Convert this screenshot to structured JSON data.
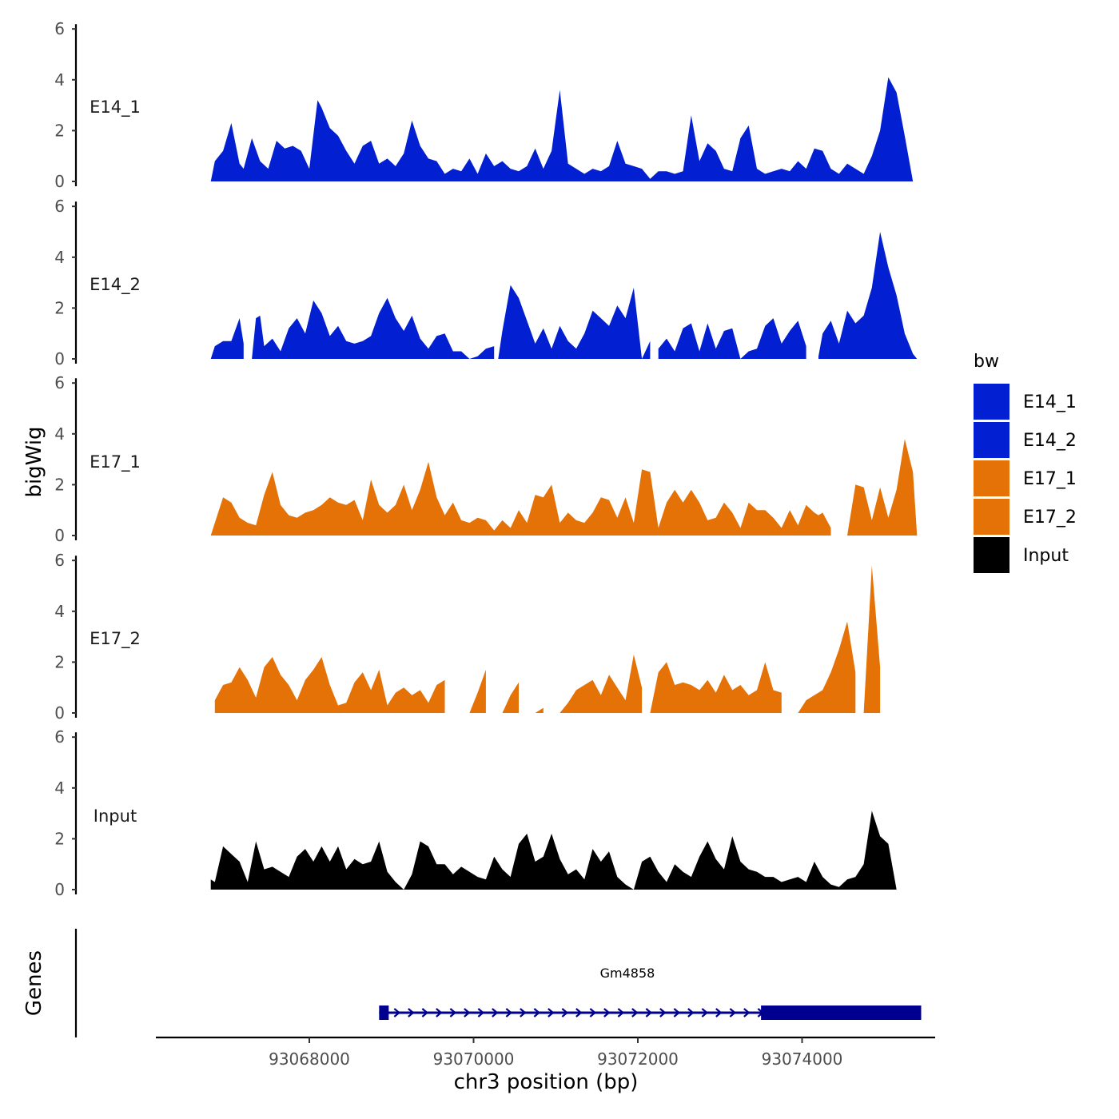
{
  "chart_data": {
    "type": "area",
    "title": "",
    "ylabel": "bigWig",
    "xlabel": "chr3 position (bp)",
    "xlim": [
      93066400,
      93075950
    ],
    "ylim": [
      0,
      6
    ],
    "y_ticks": [
      0,
      2,
      4,
      6
    ],
    "x_ticks": [
      93068000,
      93070000,
      93072000,
      93074000
    ],
    "x_tick_labels": [
      "93068000",
      "93070000",
      "93072000",
      "93074000"
    ],
    "genes_label": "Genes",
    "legend": {
      "title": "bw",
      "entries": [
        {
          "name": "E14_1",
          "color": "#0220D1"
        },
        {
          "name": "E14_2",
          "color": "#0220D1"
        },
        {
          "name": "E17_1",
          "color": "#E57206"
        },
        {
          "name": "E17_2",
          "color": "#E57206"
        },
        {
          "name": "Input",
          "color": "#000000"
        }
      ]
    },
    "series": [
      {
        "name": "E14_1",
        "color": "#0220D1",
        "x": [
          93066800,
          93066850,
          93066950,
          93067050,
          93067150,
          93067200,
          93067300,
          93067400,
          93067500,
          93067600,
          93067700,
          93067800,
          93067900,
          93068000,
          93068100,
          93068150,
          93068250,
          93068350,
          93068450,
          93068550,
          93068650,
          93068750,
          93068850,
          93068950,
          93069050,
          93069150,
          93069250,
          93069350,
          93069450,
          93069550,
          93069650,
          93069750,
          93069850,
          93069950,
          93070050,
          93070150,
          93070250,
          93070350,
          93070450,
          93070550,
          93070650,
          93070750,
          93070850,
          93070950,
          93071050,
          93071150,
          93071250,
          93071350,
          93071450,
          93071550,
          93071650,
          93071750,
          93071850,
          93071950,
          93072050,
          93072150,
          93072250,
          93072350,
          93072450,
          93072550,
          93072650,
          93072750,
          93072850,
          93072950,
          93073050,
          93073150,
          93073250,
          93073350,
          93073450,
          93073550,
          93073650,
          93073750,
          93073850,
          93073950,
          93074050,
          93074150,
          93074250,
          93074350,
          93074450,
          93074550,
          93074650,
          93074750,
          93074850,
          93074950,
          93075050,
          93075150,
          93075250,
          93075350,
          93075400,
          93075450
        ],
        "y": [
          0,
          0.8,
          1.2,
          2.3,
          0.7,
          0.5,
          1.7,
          0.8,
          0.5,
          1.6,
          1.3,
          1.4,
          1.2,
          0.5,
          3.2,
          2.9,
          2.1,
          1.8,
          1.2,
          0.7,
          1.4,
          1.6,
          0.7,
          0.9,
          0.6,
          1.1,
          2.4,
          1.4,
          0.9,
          0.8,
          0.3,
          0.5,
          0.4,
          0.9,
          0.3,
          1.1,
          0.6,
          0.8,
          0.5,
          0.4,
          0.6,
          1.3,
          0.5,
          1.2,
          3.6,
          0.7,
          0.5,
          0.3,
          0.5,
          0.4,
          0.6,
          1.6,
          0.7,
          0.6,
          0.5,
          0.1,
          0.4,
          0.4,
          0.3,
          0.4,
          2.6,
          0.8,
          1.5,
          1.2,
          0.5,
          0.4,
          1.7,
          2.2,
          0.5,
          0.3,
          0.4,
          0.5,
          0.4,
          0.8,
          0.5,
          1.3,
          1.2,
          0.5,
          0.3,
          0.7,
          0.5,
          0.3,
          1.0,
          2.0,
          4.1,
          3.5,
          1.8,
          0,
          0,
          0
        ]
      },
      {
        "name": "E14_2",
        "color": "#0220D1",
        "x": [
          93066800,
          93066850,
          93066950,
          93067050,
          93067150,
          93067200,
          93067300,
          93067350,
          93067400,
          93067450,
          93067550,
          93067650,
          93067750,
          93067850,
          93067950,
          93068050,
          93068150,
          93068250,
          93068350,
          93068450,
          93068550,
          93068650,
          93068750,
          93068850,
          93068950,
          93069050,
          93069150,
          93069250,
          93069350,
          93069450,
          93069550,
          93069650,
          93069750,
          93069850,
          93069950,
          93070050,
          93070150,
          93070250,
          93070300,
          93070350,
          93070450,
          93070550,
          93070650,
          93070750,
          93070850,
          93070950,
          93071050,
          93071150,
          93071250,
          93071350,
          93071450,
          93071550,
          93071650,
          93071750,
          93071850,
          93071950,
          93072050,
          93072150,
          93072250,
          93072350,
          93072450,
          93072550,
          93072650,
          93072750,
          93072850,
          93072950,
          93073050,
          93073150,
          93073250,
          93073350,
          93073450,
          93073550,
          93073650,
          93073750,
          93073850,
          93073950,
          93074050,
          93074150,
          93074200,
          93074250,
          93074350,
          93074450,
          93074550,
          93074650,
          93074750,
          93074850,
          93074950,
          93075050,
          93075150,
          93075250,
          93075350,
          93075400,
          93075450
        ],
        "y": [
          0,
          0.5,
          0.7,
          0.7,
          1.6,
          0.6,
          0,
          1.6,
          1.7,
          0.5,
          0.8,
          0.3,
          1.2,
          1.6,
          1.0,
          2.3,
          1.8,
          0.9,
          1.3,
          0.7,
          0.6,
          0.7,
          0.9,
          1.8,
          2.4,
          1.6,
          1.1,
          1.7,
          0.8,
          0.4,
          0.9,
          1.0,
          0.3,
          0.3,
          0,
          0.1,
          0.4,
          0.5,
          0,
          1.1,
          2.9,
          2.4,
          1.5,
          0.6,
          1.2,
          0.4,
          1.3,
          0.7,
          0.4,
          1.0,
          1.9,
          1.6,
          1.3,
          2.1,
          1.6,
          2.8,
          0,
          0.7,
          0.4,
          0.8,
          0.3,
          1.2,
          1.4,
          0.3,
          1.4,
          0.4,
          1.1,
          1.2,
          0,
          0.3,
          0.4,
          1.3,
          1.6,
          0.6,
          1.1,
          1.5,
          0.5,
          0.2,
          0.1,
          1.0,
          1.5,
          0.6,
          1.9,
          1.4,
          1.7,
          2.8,
          5.0,
          3.6,
          2.5,
          1.0,
          0.2,
          0,
          0
        ],
        "gaps_after_index": [
          5,
          37,
          57,
          76,
          77
        ]
      },
      {
        "name": "E17_1",
        "color": "#E57206",
        "x": [
          93066800,
          93066850,
          93066950,
          93067050,
          93067150,
          93067250,
          93067350,
          93067450,
          93067550,
          93067650,
          93067750,
          93067850,
          93067950,
          93068050,
          93068150,
          93068250,
          93068350,
          93068450,
          93068550,
          93068650,
          93068750,
          93068850,
          93068950,
          93069050,
          93069150,
          93069250,
          93069350,
          93069450,
          93069550,
          93069650,
          93069750,
          93069850,
          93069950,
          93070050,
          93070150,
          93070250,
          93070350,
          93070450,
          93070550,
          93070650,
          93070750,
          93070850,
          93070950,
          93071050,
          93071150,
          93071250,
          93071350,
          93071450,
          93071550,
          93071650,
          93071750,
          93071850,
          93071950,
          93072050,
          93072150,
          93072250,
          93072350,
          93072450,
          93072550,
          93072650,
          93072750,
          93072850,
          93072950,
          93073050,
          93073150,
          93073250,
          93073350,
          93073450,
          93073550,
          93073650,
          93073750,
          93073850,
          93073950,
          93074050,
          93074150,
          93074200,
          93074250,
          93074350,
          93074450,
          93074550,
          93074650,
          93074750,
          93074850,
          93074950,
          93075050,
          93075150,
          93075250,
          93075350,
          93075400,
          93075450
        ],
        "y": [
          0,
          0.5,
          1.5,
          1.3,
          0.7,
          0.5,
          0.4,
          1.6,
          2.5,
          1.2,
          0.8,
          0.7,
          0.9,
          1.0,
          1.2,
          1.5,
          1.3,
          1.2,
          1.4,
          0.6,
          2.2,
          1.2,
          0.9,
          1.2,
          2.0,
          1.0,
          1.8,
          2.9,
          1.5,
          0.8,
          1.3,
          0.6,
          0.5,
          0.7,
          0.6,
          0.2,
          0.6,
          0.3,
          1.0,
          0.5,
          1.6,
          1.5,
          2.0,
          0.5,
          0.9,
          0.6,
          0.5,
          0.9,
          1.5,
          1.4,
          0.7,
          1.5,
          0.5,
          2.6,
          2.5,
          0.3,
          1.3,
          1.8,
          1.3,
          1.8,
          1.3,
          0.6,
          0.7,
          1.3,
          0.9,
          0.3,
          1.3,
          1.0,
          1.0,
          0.7,
          0.3,
          1.0,
          0.4,
          1.2,
          0.9,
          0.8,
          0.9,
          0.3,
          0,
          0,
          2.0,
          1.9,
          0.6,
          1.9,
          0.7,
          1.8,
          3.8,
          2.5,
          0,
          0
        ],
        "gaps_after_index": [
          77,
          78
        ]
      },
      {
        "name": "E17_2",
        "color": "#E57206",
        "x": [
          93066850,
          93066950,
          93067050,
          93067150,
          93067250,
          93067350,
          93067450,
          93067550,
          93067650,
          93067750,
          93067850,
          93067950,
          93068050,
          93068150,
          93068250,
          93068350,
          93068450,
          93068550,
          93068650,
          93068750,
          93068850,
          93068950,
          93069050,
          93069150,
          93069250,
          93069350,
          93069450,
          93069550,
          93069650,
          93069750,
          93069850,
          93069950,
          93070050,
          93070150,
          93070250,
          93070350,
          93070450,
          93070550,
          93070650,
          93070750,
          93070850,
          93070950,
          93071050,
          93071150,
          93071250,
          93071350,
          93071450,
          93071550,
          93071650,
          93071750,
          93071850,
          93071950,
          93072050,
          93072150,
          93072250,
          93072350,
          93072450,
          93072550,
          93072650,
          93072750,
          93072850,
          93072950,
          93073050,
          93073150,
          93073250,
          93073350,
          93073450,
          93073550,
          93073650,
          93073750,
          93073850,
          93073950,
          93074050,
          93074150,
          93074250,
          93074350,
          93074450,
          93074550,
          93074650,
          93074750,
          93074850,
          93074950,
          93075050,
          93075150,
          93075250,
          93075350,
          93075400,
          93075450
        ],
        "y": [
          0.5,
          1.1,
          1.2,
          1.8,
          1.3,
          0.6,
          1.8,
          2.2,
          1.5,
          1.1,
          0.5,
          1.3,
          1.7,
          2.2,
          1.1,
          0.3,
          0.4,
          1.2,
          1.6,
          0.9,
          1.7,
          0.3,
          0.8,
          1.0,
          0.7,
          0.9,
          0.4,
          1.1,
          1.3,
          0,
          0,
          0,
          0.8,
          1.7,
          0,
          0,
          0.7,
          1.2,
          0,
          0,
          0.2,
          0,
          0,
          0.4,
          0.9,
          1.1,
          1.3,
          0.7,
          1.5,
          1.0,
          0.5,
          2.3,
          1.0,
          0,
          1.6,
          2.0,
          1.1,
          1.2,
          1.1,
          0.9,
          1.3,
          0.8,
          1.5,
          0.9,
          1.1,
          0.7,
          0.9,
          2.0,
          0.9,
          0.8,
          0,
          0,
          0.5,
          0.7,
          0.9,
          1.6,
          2.5,
          3.6,
          1.6,
          0,
          5.8,
          1.8,
          0,
          0,
          0,
          0,
          0,
          0
        ],
        "gaps_after_index": [
          28,
          29,
          30,
          33,
          34,
          37,
          38,
          40,
          41,
          52,
          69,
          70,
          78,
          81,
          82,
          83,
          84,
          85,
          86
        ]
      },
      {
        "name": "Input",
        "color": "#000000",
        "x": [
          93066800,
          93066850,
          93066950,
          93067050,
          93067150,
          93067250,
          93067350,
          93067450,
          93067550,
          93067650,
          93067750,
          93067850,
          93067950,
          93068050,
          93068150,
          93068250,
          93068350,
          93068450,
          93068550,
          93068650,
          93068750,
          93068850,
          93068950,
          93069050,
          93069150,
          93069250,
          93069350,
          93069450,
          93069550,
          93069650,
          93069750,
          93069850,
          93069950,
          93070050,
          93070150,
          93070250,
          93070350,
          93070450,
          93070550,
          93070650,
          93070750,
          93070850,
          93070950,
          93071050,
          93071150,
          93071250,
          93071350,
          93071450,
          93071550,
          93071650,
          93071750,
          93071850,
          93071950,
          93072050,
          93072150,
          93072250,
          93072350,
          93072450,
          93072550,
          93072650,
          93072750,
          93072850,
          93072950,
          93073050,
          93073150,
          93073250,
          93073350,
          93073450,
          93073550,
          93073650,
          93073750,
          93073850,
          93073950,
          93074050,
          93074150,
          93074250,
          93074350,
          93074450,
          93074550,
          93074650,
          93074750,
          93074850,
          93074950,
          93075050,
          93075150,
          93075250,
          93075350,
          93075400,
          93075450
        ],
        "y": [
          0.4,
          0.3,
          1.7,
          1.4,
          1.1,
          0.3,
          1.9,
          0.8,
          0.9,
          0.7,
          0.5,
          1.3,
          1.6,
          1.1,
          1.7,
          1.1,
          1.7,
          0.8,
          1.2,
          1.0,
          1.1,
          1.9,
          0.7,
          0.3,
          0,
          0.6,
          1.9,
          1.7,
          1.0,
          1.0,
          0.6,
          0.9,
          0.7,
          0.5,
          0.4,
          1.3,
          0.8,
          0.5,
          1.8,
          2.2,
          1.1,
          1.3,
          2.2,
          1.2,
          0.6,
          0.8,
          0.4,
          1.6,
          1.1,
          1.5,
          0.5,
          0.2,
          0,
          1.1,
          1.3,
          0.7,
          0.3,
          1.0,
          0.7,
          0.5,
          1.3,
          1.9,
          1.2,
          0.8,
          2.1,
          1.1,
          0.8,
          0.7,
          0.5,
          0.5,
          0.3,
          0.4,
          0.5,
          0.3,
          1.1,
          0.5,
          0.2,
          0.1,
          0.4,
          0.5,
          1.0,
          3.1,
          2.1,
          1.8,
          0,
          0,
          0,
          0,
          0
        ]
      }
    ],
    "gene": {
      "name": "Gm4858",
      "start": 93068850,
      "end": 93075450,
      "exons": [
        [
          93068850,
          93068950
        ],
        [
          93073500,
          93075450
        ]
      ],
      "strand": "+",
      "color": "#000090"
    }
  }
}
